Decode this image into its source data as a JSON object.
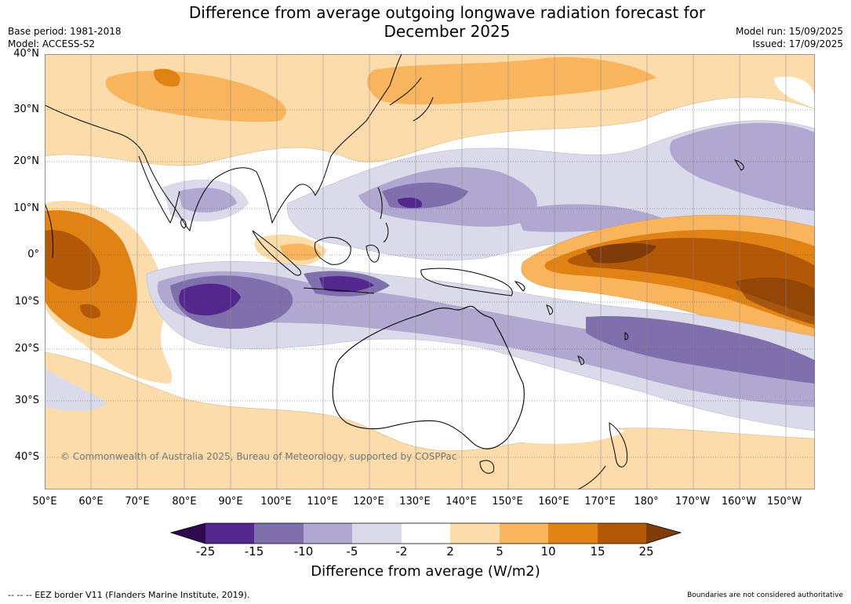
{
  "title": {
    "line1": "Difference from average outgoing longwave radiation forecast for",
    "line2": "December 2025"
  },
  "meta_left": {
    "base_period": "Base period: 1981-2018",
    "model": "Model: ACCESS-S2"
  },
  "meta_right": {
    "model_run": "Model run: 15/09/2025",
    "issued": "Issued: 17/09/2025"
  },
  "map": {
    "lat_labels": [
      "40°N",
      "30°N",
      "20°N",
      "10°N",
      "0°",
      "10°S",
      "20°S",
      "30°S",
      "40°S"
    ],
    "lon_labels": [
      "50°E",
      "60°E",
      "70°E",
      "80°E",
      "90°E",
      "100°E",
      "110°E",
      "120°E",
      "130°E",
      "140°E",
      "150°E",
      "160°E",
      "170°E",
      "180°",
      "170°W",
      "160°W",
      "150°W"
    ],
    "copyright": "© Commonwealth of Australia 2025, Bureau of Meteorology, supported by COSPPac"
  },
  "legend": {
    "ticks": [
      "-25",
      "-15",
      "-10",
      "-5",
      "-2",
      "2",
      "5",
      "10",
      "15",
      "25"
    ],
    "title": "Difference from average (W/m2)",
    "colors": [
      "#2d0a4e",
      "#54278f",
      "#7f6fac",
      "#b0a8d0",
      "#dadaea",
      "#ffffff",
      "#fddcab",
      "#f9b55e",
      "#e08214",
      "#b35806",
      "#7f3b08"
    ]
  },
  "footer": {
    "left": "--  --  -- EEZ border V11 (Flanders Marine Institute, 2019).",
    "right": "Boundaries are not considered authoritative"
  }
}
